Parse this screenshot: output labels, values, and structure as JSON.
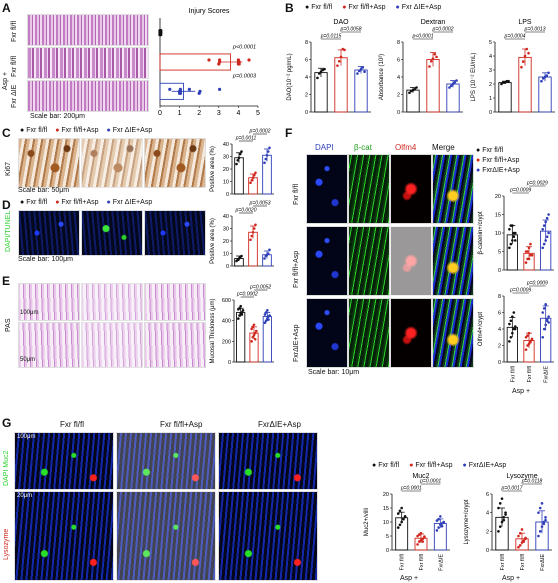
{
  "panels": {
    "A": {
      "letter": "A",
      "rows": [
        "Fxr fl/fl",
        "Fxr fl/fl",
        "Fxr ΔIE"
      ],
      "group_label": "Asp +",
      "scale_bar": "Scale bar: 200μm",
      "chart_title": "Injury Scores",
      "p_values": [
        "p<0.0001",
        "p=0.0003"
      ]
    },
    "B": {
      "letter": "B",
      "legend": [
        "Fxr fl/fl",
        "Fxr fl/fl+Asp",
        "Fxr ΔIE+Asp"
      ]
    },
    "C": {
      "letter": "C",
      "legend": [
        "Fxr fl/fl",
        "Fxr fl/fl+Asp",
        "Fxr ΔIE+Asp"
      ],
      "row_label": "Ki67",
      "scale_bar": "Scale bar: 50μm",
      "chart_ylabel": "Positive area (%)",
      "p_values": [
        "p=0.0011",
        "p=0.0002"
      ]
    },
    "D": {
      "letter": "D",
      "legend": [
        "Fxr fl/fl",
        "Fxr fl/fl+Asp",
        "Fxr ΔIE+Asp"
      ],
      "row_label": "DAPI/TUNEL",
      "scale_bar": "Scale bar: 100μm",
      "chart_ylabel": "Positive area (%)",
      "p_values": [
        "p=0.0020",
        "p=0.0053"
      ]
    },
    "E": {
      "letter": "E",
      "row_label": "PAS",
      "scale_top": "100μm",
      "scale_bottom": "50μm",
      "chart_ylabel": "Mucosal Thickness (μm)",
      "p_values": [
        "p=0.0002",
        "p=0.0052"
      ]
    },
    "F": {
      "letter": "F",
      "columns": [
        "DAPI",
        "β-cat",
        "Olfm4",
        "Merge"
      ],
      "rows": [
        "Fxr fl/fl",
        "Fxr fl/fl+Asp",
        "FxrΔIE+Asp"
      ],
      "scale_bar": "Scale bar: 10μm",
      "legend": [
        "Fxr fl/fl",
        "Fxr fl/fl+Asp",
        "FxrΔIE+Asp"
      ],
      "x_labels": [
        "Fxr fl/fl",
        "Fxr fl/fl",
        "FxrΔIE"
      ],
      "group_label": "Asp +"
    },
    "G": {
      "letter": "G",
      "columns": [
        "Fxr fl/fl",
        "Fxr fl/fl+Asp",
        "FxrΔIE+Asp"
      ],
      "row_labels": [
        "DAPI Muc2",
        "Lysozyme"
      ],
      "scale_top": "100μm",
      "scale_bottom": "20μm",
      "legend": [
        "Fxr fl/fl",
        "Fxr fl/fl+Asp",
        "FxrΔIE+Asp"
      ],
      "x_labels": [
        "Fxr fl/fl",
        "Fxr fl/fl",
        "FxrΔIE"
      ],
      "group_label": "Asp +"
    }
  },
  "colors": {
    "black": "#111111",
    "red": "#d0281f",
    "blue": "#2f3fb8"
  },
  "chart_data": [
    {
      "id": "A-injury",
      "type": "bar",
      "orientation": "horizontal",
      "title": "Injury Scores",
      "categories": [
        "Fxr fl/fl",
        "Fxr fl/fl+Asp",
        "FxrΔIE+Asp"
      ],
      "values": [
        0,
        3.6,
        1.2
      ],
      "errors": [
        0,
        0.6,
        0.6
      ],
      "points": [
        [
          0,
          0,
          0,
          0,
          0,
          0,
          0,
          0,
          0,
          0
        ],
        [
          2.5,
          3,
          3,
          3,
          4,
          4,
          4,
          4,
          4,
          4.5
        ],
        [
          0.5,
          1,
          1,
          1,
          1,
          1,
          1.5,
          2,
          2,
          3
        ]
      ],
      "xlim": [
        0,
        5
      ],
      "xticks": [
        0,
        1,
        2,
        3,
        4,
        5
      ],
      "p_values": [
        {
          "text": "p<0.0001"
        },
        {
          "text": "p=0.0003"
        }
      ]
    },
    {
      "id": "B-DAO",
      "type": "bar",
      "title": "DAO",
      "ylabel": "DAO(10⁻² pg/mL)",
      "categories": [
        "Fxr fl/fl",
        "Fxr fl/fl+Asp",
        "FxrΔIE+Asp"
      ],
      "values": [
        4.5,
        6.2,
        4.8
      ],
      "errors": [
        0.5,
        0.9,
        0.4
      ],
      "points": [
        [
          3.9,
          4.4,
          4.6,
          4.8,
          4.9
        ],
        [
          5.3,
          5.8,
          6.3,
          7.2,
          7.1
        ],
        [
          4.4,
          4.7,
          4.9,
          5.1,
          4.6
        ]
      ],
      "ylim": [
        0,
        8
      ],
      "yticks": [
        0,
        2,
        4,
        6,
        8
      ],
      "p_values": [
        {
          "text": "p=0.0115",
          "from": 0,
          "to": 1
        },
        {
          "text": "p=0.0058",
          "from": 1,
          "to": 2
        }
      ]
    },
    {
      "id": "B-Dextran",
      "type": "bar",
      "title": "Dextran",
      "ylabel": "Absorbance (10²)",
      "categories": [
        "Fxr fl/fl",
        "Fxr fl/fl+Asp",
        "FxrΔIE+Asp"
      ],
      "values": [
        2.5,
        6.0,
        3.2
      ],
      "errors": [
        0.3,
        0.8,
        0.4
      ],
      "points": [
        [
          2.2,
          2.4,
          2.5,
          2.6,
          2.8
        ],
        [
          5.2,
          5.8,
          6.1,
          6.6,
          6.3
        ],
        [
          2.8,
          3.0,
          3.2,
          3.4,
          3.6
        ]
      ],
      "ylim": [
        0,
        8
      ],
      "yticks": [
        0,
        2,
        4,
        6,
        8
      ],
      "p_values": [
        {
          "text": "p<0.0001",
          "from": 0,
          "to": 1
        },
        {
          "text": "p=0.0002",
          "from": 1,
          "to": 2
        }
      ]
    },
    {
      "id": "B-LPS",
      "type": "bar",
      "title": "LPS",
      "ylabel": "LPS (10⁻² EU/mL)",
      "categories": [
        "Fxr fl/fl",
        "Fxr fl/fl+Asp",
        "FxrΔIE+Asp"
      ],
      "values": [
        2.1,
        3.9,
        2.5
      ],
      "errors": [
        0.1,
        0.6,
        0.3
      ],
      "points": [
        [
          2.0,
          2.1,
          2.1,
          2.2,
          2.2
        ],
        [
          3.2,
          3.6,
          4.0,
          4.5,
          4.2
        ],
        [
          2.2,
          2.4,
          2.5,
          2.6,
          2.8
        ]
      ],
      "ylim": [
        0,
        5
      ],
      "yticks": [
        0,
        1,
        2,
        3,
        4,
        5
      ],
      "p_values": [
        {
          "text": "p=0.0004",
          "from": 0,
          "to": 1
        },
        {
          "text": "p=0.0013",
          "from": 1,
          "to": 2
        }
      ]
    },
    {
      "id": "C-Ki67",
      "type": "bar",
      "ylabel": "Positive area (%)",
      "categories": [
        "Fxr fl/fl",
        "Fxr fl/fl+Asp",
        "FxrΔIE+Asp"
      ],
      "values": [
        29,
        13,
        31
      ],
      "errors": [
        4,
        3,
        5
      ],
      "points": [
        [
          24,
          27,
          29,
          32,
          34
        ],
        [
          9,
          11,
          13,
          15,
          17
        ],
        [
          25,
          28,
          31,
          34,
          37
        ]
      ],
      "ylim": [
        0,
        40
      ],
      "yticks": [
        0,
        10,
        20,
        30,
        40
      ],
      "p_values": [
        {
          "text": "p=0.0011",
          "from": 0,
          "to": 1
        },
        {
          "text": "p=0.0002",
          "from": 1,
          "to": 2
        }
      ]
    },
    {
      "id": "D-TUNEL",
      "type": "bar",
      "ylabel": "Positive area (%)",
      "categories": [
        "Fxr fl/fl",
        "Fxr fl/fl+Asp",
        "FxrΔIE+Asp"
      ],
      "values": [
        6,
        27,
        9
      ],
      "errors": [
        2,
        5,
        3
      ],
      "points": [
        [
          4,
          5,
          6,
          7,
          8
        ],
        [
          21,
          24,
          27,
          30,
          33
        ],
        [
          6,
          8,
          9,
          10,
          13
        ]
      ],
      "ylim": [
        0,
        40
      ],
      "yticks": [
        0,
        10,
        20,
        30,
        40
      ],
      "p_values": [
        {
          "text": "p=0.0020",
          "from": 0,
          "to": 1
        },
        {
          "text": "p=0.0053",
          "from": 1,
          "to": 2
        }
      ]
    },
    {
      "id": "E-Mucosal",
      "type": "bar",
      "ylabel": "Mucosal Thickness (μm)",
      "categories": [
        "Fxr fl/fl",
        "Fxr fl/fl+Asp",
        "FxrΔIE+Asp"
      ],
      "values": [
        480,
        280,
        440
      ],
      "errors": [
        40,
        60,
        40
      ],
      "points": [
        [
          420,
          450,
          470,
          480,
          500,
          510,
          520,
          540,
          460
        ],
        [
          200,
          240,
          260,
          280,
          300,
          320,
          340,
          360,
          220
        ],
        [
          380,
          400,
          420,
          440,
          450,
          460,
          480,
          500,
          410
        ]
      ],
      "ylim": [
        0,
        600
      ],
      "yticks": [
        0,
        200,
        400,
        600
      ],
      "p_values": [
        {
          "text": "p=0.0002",
          "from": 0,
          "to": 1
        },
        {
          "text": "p=0.0052",
          "from": 1,
          "to": 2
        }
      ]
    },
    {
      "id": "F-bcat",
      "type": "bar",
      "ylabel": "β-catenin+/crypt",
      "categories": [
        "Fxr fl/fl",
        "Fxr fl/fl",
        "FxrΔIE"
      ],
      "values": [
        9.5,
        4.5,
        10.5
      ],
      "errors": [
        2.5,
        1.8,
        3
      ],
      "points": [
        [
          6,
          7,
          8,
          9,
          10,
          11,
          12,
          12,
          10,
          8
        ],
        [
          2,
          3,
          3,
          4,
          4,
          5,
          5,
          6,
          7,
          4
        ],
        [
          6,
          7,
          8,
          9,
          10,
          11,
          12,
          13,
          14,
          15
        ]
      ],
      "ylim": [
        0,
        20
      ],
      "yticks": [
        0,
        5,
        10,
        15,
        20
      ],
      "p_values": [
        {
          "text": "p=0.0009",
          "from": 0,
          "to": 1
        },
        {
          "text": "p=0.0029",
          "from": 1,
          "to": 2
        }
      ]
    },
    {
      "id": "F-Olfm4",
      "type": "bar",
      "ylabel": "Olfm4+/crypt",
      "categories": [
        "Fxr fl/fl",
        "Fxr fl/fl",
        "FxrΔIE"
      ],
      "values": [
        4.2,
        2.6,
        5.3
      ],
      "errors": [
        1.2,
        0.9,
        1.5
      ],
      "points": [
        [
          2.5,
          3,
          3.5,
          4,
          4.3,
          4.6,
          5,
          5.5,
          6,
          4
        ],
        [
          1.5,
          2,
          2.2,
          2.5,
          2.8,
          3,
          3.2,
          3.5,
          2.4,
          2.7
        ],
        [
          3,
          4,
          4.5,
          5,
          5.5,
          6,
          6.5,
          7,
          5.2,
          4.8
        ]
      ],
      "ylim": [
        0,
        8
      ],
      "yticks": [
        0,
        2,
        4,
        6,
        8
      ],
      "p_values": [
        {
          "text": "p=0.0009",
          "from": 0,
          "to": 1
        },
        {
          "text": "p=0.0009",
          "from": 1,
          "to": 2
        }
      ]
    },
    {
      "id": "G-Muc2",
      "type": "bar",
      "title": "Muc2",
      "ylabel": "Muc2+/villi",
      "categories": [
        "Fxr fl/fl",
        "Fxr fl/fl",
        "FxrΔIE"
      ],
      "values": [
        11.5,
        4.2,
        9.5
      ],
      "errors": [
        2.0,
        1.5,
        1.6
      ],
      "points": [
        [
          8,
          9,
          10,
          11,
          12,
          13,
          14,
          15,
          11,
          12
        ],
        [
          2,
          3,
          3.5,
          4,
          4.5,
          5,
          5.5,
          6,
          3,
          4.8
        ],
        [
          7,
          8,
          9,
          9.5,
          10,
          10.5,
          11,
          12,
          8.5,
          9.8
        ]
      ],
      "ylim": [
        0,
        20
      ],
      "yticks": [
        0,
        5,
        10,
        15,
        20
      ],
      "p_values": [
        {
          "text": "p=0.0001",
          "from": 0,
          "to": 1
        },
        {
          "text": "p=0.0001",
          "from": 1,
          "to": 2
        }
      ]
    },
    {
      "id": "G-Lysozyme",
      "type": "bar",
      "title": "Lysozyme",
      "ylabel": "Lysozyme+/crypt",
      "categories": [
        "Fxr fl/fl",
        "Fxr fl/fl",
        "FxrΔIE"
      ],
      "values": [
        3.5,
        1.2,
        3.0
      ],
      "errors": [
        1.0,
        0.6,
        1.2
      ],
      "points": [
        [
          2,
          2.5,
          3,
          3.5,
          4,
          4.5,
          5,
          5.5,
          3.2,
          3.8
        ],
        [
          0.3,
          0.5,
          0.8,
          1,
          1.2,
          1.5,
          1.8,
          2.2,
          0.9,
          1.3
        ],
        [
          1.5,
          2,
          2.5,
          3,
          3.5,
          4,
          4.5,
          5,
          2.8,
          3.2
        ]
      ],
      "ylim": [
        0,
        6
      ],
      "yticks": [
        0,
        2,
        4,
        6
      ],
      "p_values": [
        {
          "text": "p=0.0017",
          "from": 0,
          "to": 1
        },
        {
          "text": "p=0.0118",
          "from": 1,
          "to": 2
        }
      ]
    }
  ]
}
